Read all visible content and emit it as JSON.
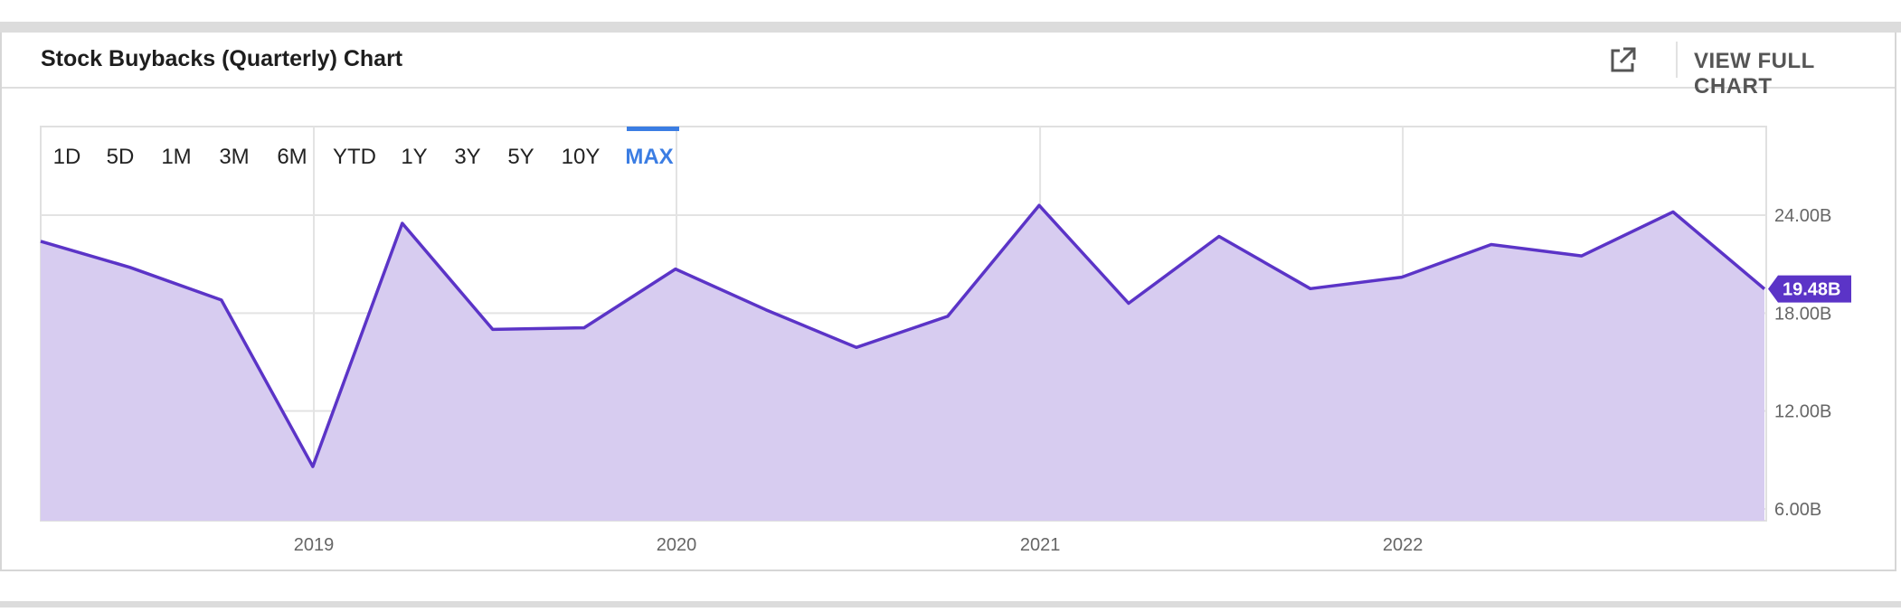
{
  "header": {
    "title": "Stock Buybacks (Quarterly) Chart",
    "full_chart_label": "VIEW FULL CHART"
  },
  "range_buttons": [
    "1D",
    "5D",
    "1M",
    "3M",
    "6M",
    "YTD",
    "1Y",
    "3Y",
    "5Y",
    "10Y",
    "MAX"
  ],
  "active_range": "MAX",
  "colors": {
    "line": "#5b34c7",
    "fill": "#d7ccf0",
    "badge": "#5b34c7",
    "active": "#3b7de3"
  },
  "chart_data": {
    "type": "area",
    "x": [
      "2018-03-31",
      "2018-06-30",
      "2018-09-30",
      "2018-12-31",
      "2019-03-31",
      "2019-06-30",
      "2019-09-30",
      "2019-12-31",
      "2020-03-31",
      "2020-06-30",
      "2020-09-30",
      "2020-12-31",
      "2021-03-31",
      "2021-06-30",
      "2021-09-30",
      "2021-12-31",
      "2022-03-31",
      "2022-06-30",
      "2022-09-30",
      "2022-12-31"
    ],
    "series": [
      {
        "name": "",
        "values": [
          22.4,
          20.8,
          18.8,
          8.6,
          23.5,
          17.0,
          17.1,
          20.7,
          18.2,
          15.9,
          17.8,
          24.6,
          18.6,
          22.7,
          19.5,
          20.2,
          22.2,
          21.5,
          24.2,
          19.48
        ]
      }
    ],
    "xticks": [
      "2019",
      "2020",
      "2021",
      "2022"
    ],
    "yticks": [
      6,
      12,
      18,
      24
    ],
    "ytick_labels": [
      "6.00B",
      "12.00B",
      "18.00B",
      "24.00B"
    ],
    "ylim": [
      6,
      30
    ],
    "last_value_label": "19.48B",
    "grid": true,
    "title": "",
    "xlabel": "",
    "ylabel": ""
  }
}
